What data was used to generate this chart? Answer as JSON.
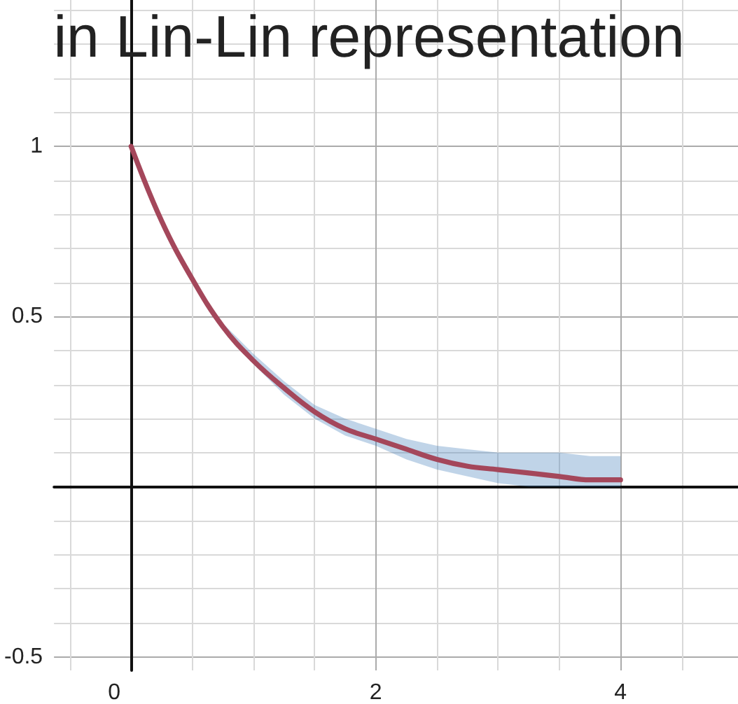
{
  "chart_data": {
    "type": "line",
    "title": "in Lin-Lin representation",
    "x": [
      0,
      0.25,
      0.5,
      0.75,
      1,
      1.25,
      1.5,
      1.75,
      2,
      2.25,
      2.5,
      2.75,
      3,
      3.25,
      3.5,
      3.75,
      4
    ],
    "series": [
      {
        "color": "#a4475b",
        "values": [
          1,
          0.78,
          0.61,
          0.47,
          0.37,
          0.29,
          0.22,
          0.17,
          0.14,
          0.11,
          0.08,
          0.06,
          0.05,
          0.04,
          0.03,
          0.02,
          0.02
        ],
        "lower": [
          1,
          0.78,
          0.61,
          0.46,
          0.36,
          0.27,
          0.2,
          0.15,
          0.12,
          0.08,
          0.05,
          0.03,
          0.01,
          0,
          0,
          0,
          0
        ],
        "upper": [
          1,
          0.78,
          0.61,
          0.48,
          0.39,
          0.31,
          0.24,
          0.2,
          0.17,
          0.14,
          0.12,
          0.11,
          0.1,
          0.1,
          0.1,
          0.09,
          0.09
        ]
      }
    ],
    "xlim": [
      -0.63,
      4.96
    ],
    "xticks": [
      {
        "value": -0.5,
        "label": null
      },
      0,
      {
        "value": 0.5,
        "label": null
      },
      {
        "value": 1,
        "label": null
      },
      {
        "value": 1.5,
        "label": null
      },
      2,
      {
        "value": 2.5,
        "label": null
      },
      {
        "value": 3,
        "label": null
      },
      {
        "value": 3.5,
        "label": null
      },
      4,
      {
        "value": 4.5,
        "label": null
      }
    ],
    "ylim": [
      -0.54,
      1.43
    ],
    "yticks": [
      -0.5,
      {
        "value": -0.4,
        "label": null
      },
      {
        "value": -0.3,
        "label": null
      },
      {
        "value": -0.2,
        "label": null
      },
      {
        "value": -0.1,
        "label": null
      },
      {
        "value": 0,
        "label": null
      },
      {
        "value": 0.1,
        "label": null
      },
      {
        "value": 0.2,
        "label": null
      },
      {
        "value": 0.3,
        "label": null
      },
      {
        "value": 0.4,
        "label": null
      },
      0.5,
      {
        "value": 0.6,
        "label": null
      },
      {
        "value": 0.7,
        "label": null
      },
      {
        "value": 0.8,
        "label": null
      },
      {
        "value": 0.9,
        "label": null
      },
      1,
      {
        "value": 1.1,
        "label": null
      },
      {
        "value": 1.2,
        "label": null
      },
      {
        "value": 1.3,
        "label": null
      },
      {
        "value": 1.4,
        "label": null
      }
    ],
    "grid": true,
    "marker": "none",
    "line_style": "solid"
  }
}
